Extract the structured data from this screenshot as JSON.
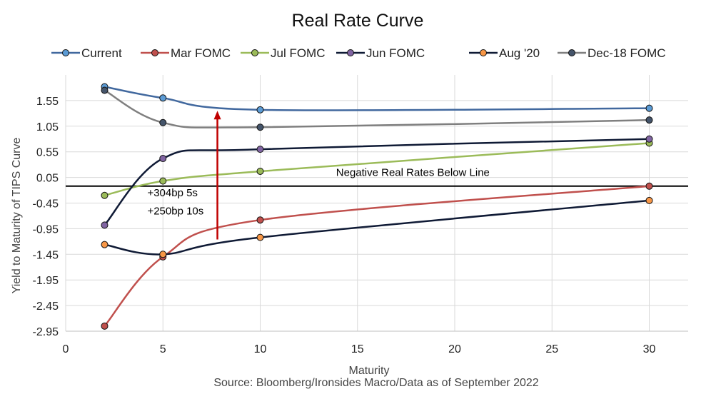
{
  "chart_data": {
    "type": "line",
    "title": "Real Rate Curve",
    "xlabel": "Maturity",
    "ylabel": "Yield to Maturity of TIPS Curve",
    "source": "Source: Bloomberg/Ironsides Macro/Data as of September 2022",
    "xlim": [
      0,
      32
    ],
    "ylim": [
      -2.95,
      2.05
    ],
    "x_ticks": [
      0,
      5,
      10,
      15,
      20,
      25,
      30
    ],
    "x_tick_labels": [
      "0",
      "5",
      "10",
      "15",
      "20",
      "25",
      "30"
    ],
    "y_ticks": [
      1.55,
      1.05,
      0.55,
      0.05,
      -0.45,
      -0.95,
      -1.45,
      -1.95,
      -2.45,
      -2.95
    ],
    "y_tick_labels": [
      "1.55",
      "1.05",
      "0.55",
      "0.05",
      "-0.45",
      "-0.95",
      "-1.45",
      "-1.95",
      "-2.45",
      "-2.95"
    ],
    "grid": true,
    "legend_position": "top",
    "zero_line": {
      "y": -0.12,
      "label": "Negative Real Rates Below Line"
    },
    "annotation": {
      "lines": [
        "+304bp 5s",
        "+250bp 10s"
      ],
      "arrow_from": [
        7.8,
        -1.16
      ],
      "arrow_to": [
        7.8,
        1.35
      ],
      "color": "#c00000"
    },
    "series": [
      {
        "name": "Current",
        "color": "#41689e",
        "marker": "#5b9bd5",
        "x": [
          2,
          5,
          10,
          30
        ],
        "y": [
          1.82,
          1.6,
          1.37,
          1.4
        ]
      },
      {
        "name": "Mar FOMC",
        "color": "#c0504d",
        "marker": "#c0504d",
        "x": [
          2,
          5,
          10,
          30
        ],
        "y": [
          -2.85,
          -1.5,
          -0.78,
          -0.12
        ]
      },
      {
        "name": "Jul FOMC",
        "color": "#9bbb59",
        "marker": "#9bbb59",
        "x": [
          2,
          5,
          10,
          30
        ],
        "y": [
          -0.3,
          -0.02,
          0.17,
          0.72
        ]
      },
      {
        "name": "Jun FOMC",
        "color": "#0f1a35",
        "marker": "#8064a2",
        "x": [
          2,
          5,
          10,
          30
        ],
        "y": [
          -0.88,
          0.42,
          0.6,
          0.8
        ]
      },
      {
        "name": "Aug '20",
        "color": "#0f1a35",
        "marker": "#f79646",
        "x": [
          2,
          5,
          10,
          30
        ],
        "y": [
          -1.26,
          -1.45,
          -1.12,
          -0.4
        ]
      },
      {
        "name": "Dec-18 FOMC",
        "color": "#7f7f7f",
        "marker": "#44546a",
        "x": [
          2,
          5,
          10,
          30
        ],
        "y": [
          1.75,
          1.12,
          1.03,
          1.17
        ]
      }
    ]
  }
}
